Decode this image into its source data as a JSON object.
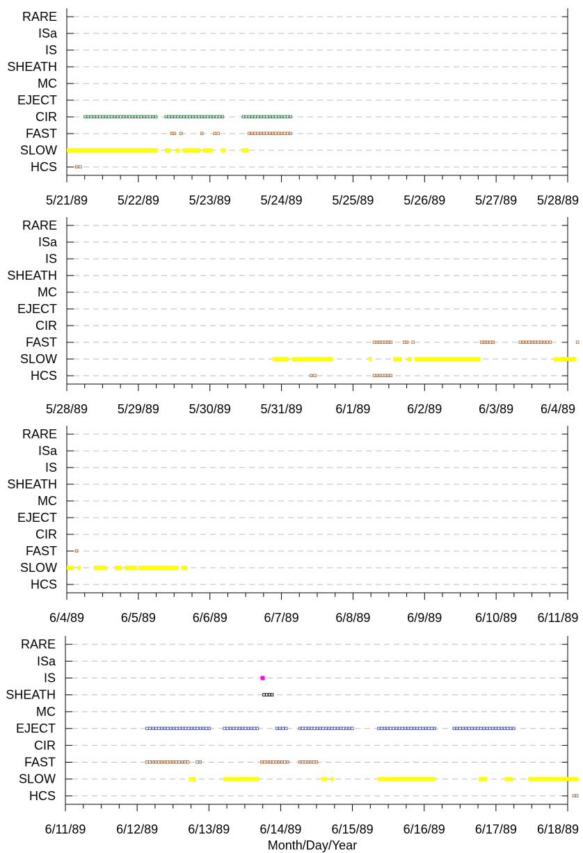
{
  "chart_data": [
    {
      "type": "timeline",
      "categories": [
        "RARE",
        "ISa",
        "IS",
        "SHEATH",
        "MC",
        "EJECT",
        "CIR",
        "FAST",
        "SLOW",
        "HCS"
      ],
      "x_ticks": [
        "5/21/89",
        "5/22/89",
        "5/23/89",
        "5/24/89",
        "5/25/89",
        "5/26/89",
        "5/27/89",
        "5/28/89"
      ],
      "grid": "dashed-horizontal",
      "series": [
        {
          "category": "CIR",
          "color": "#2a8a4a",
          "style": "open-square",
          "intervals": [
            [
              0.24,
              1.27
            ],
            [
              1.37,
              2.2
            ],
            [
              2.45,
              3.15
            ]
          ]
        },
        {
          "category": "FAST",
          "color": "#c06a2a",
          "style": "open-square",
          "intervals": [
            [
              1.45,
              1.52
            ],
            [
              1.58,
              1.6
            ],
            [
              1.87,
              1.89
            ],
            [
              2.05,
              2.15
            ],
            [
              2.53,
              3.15
            ]
          ]
        },
        {
          "category": "SLOW",
          "color": "#ffff00",
          "style": "thick-bar",
          "intervals": [
            [
              0.0,
              1.27
            ],
            [
              1.37,
              1.45
            ],
            [
              1.52,
              1.58
            ],
            [
              1.62,
              1.87
            ],
            [
              1.9,
              2.04
            ],
            [
              2.16,
              2.22
            ],
            [
              2.44,
              2.54
            ]
          ]
        },
        {
          "category": "HCS",
          "color": "#c06a2a",
          "style": "open-square",
          "intervals": [
            [
              0.12,
              0.22
            ]
          ]
        }
      ]
    },
    {
      "type": "timeline",
      "categories": [
        "RARE",
        "ISa",
        "IS",
        "SHEATH",
        "MC",
        "EJECT",
        "CIR",
        "FAST",
        "SLOW",
        "HCS"
      ],
      "x_ticks": [
        "5/28/89",
        "5/29/89",
        "5/30/89",
        "5/31/89",
        "6/1/89",
        "6/2/89",
        "6/3/89",
        "6/4/89"
      ],
      "grid": "dashed-horizontal",
      "series": [
        {
          "category": "FAST",
          "color": "#c06a2a",
          "style": "open-square",
          "intervals": [
            [
              4.28,
              4.55
            ],
            [
              4.7,
              4.77
            ],
            [
              4.82,
              4.84
            ],
            [
              5.78,
              5.98
            ],
            [
              6.32,
              6.78
            ],
            [
              7.12,
              7.15
            ]
          ]
        },
        {
          "category": "SLOW",
          "color": "#ffff00",
          "style": "thick-bar",
          "intervals": [
            [
              2.88,
              3.1
            ],
            [
              3.15,
              3.72
            ],
            [
              4.22,
              4.26
            ],
            [
              4.56,
              4.68
            ],
            [
              4.76,
              4.82
            ],
            [
              4.86,
              5.78
            ],
            [
              6.8,
              7.12
            ]
          ]
        },
        {
          "category": "HCS",
          "color": "#c06a2a",
          "style": "open-square",
          "intervals": [
            [
              3.4,
              3.5
            ],
            [
              4.28,
              4.55
            ]
          ]
        }
      ]
    },
    {
      "type": "timeline",
      "categories": [
        "RARE",
        "ISa",
        "IS",
        "SHEATH",
        "MC",
        "EJECT",
        "CIR",
        "FAST",
        "SLOW",
        "HCS"
      ],
      "x_ticks": [
        "6/4/89",
        "6/5/89",
        "6/6/89",
        "6/7/89",
        "6/8/89",
        "6/9/89",
        "6/10/89",
        "6/11/89"
      ],
      "grid": "dashed-horizontal",
      "series": [
        {
          "category": "FAST",
          "color": "#c06a2a",
          "style": "open-square",
          "intervals": [
            [
              0.12,
              0.14
            ]
          ]
        },
        {
          "category": "SLOW",
          "color": "#ffff00",
          "style": "thick-bar",
          "intervals": [
            [
              0.0,
              0.1
            ],
            [
              0.15,
              0.19
            ],
            [
              0.38,
              0.56
            ],
            [
              0.67,
              0.77
            ],
            [
              0.81,
              0.98
            ],
            [
              1.0,
              1.56
            ],
            [
              1.6,
              1.68
            ]
          ]
        }
      ]
    },
    {
      "type": "timeline",
      "categories": [
        "RARE",
        "ISa",
        "IS",
        "SHEATH",
        "MC",
        "EJECT",
        "CIR",
        "FAST",
        "SLOW",
        "HCS"
      ],
      "x_ticks": [
        "6/11/89",
        "6/12/89",
        "6/13/89",
        "6/14/89",
        "6/15/89",
        "6/16/89",
        "6/17/89",
        "6/18/89"
      ],
      "xlabel": "Month/Day/Year",
      "grid": "dashed-horizontal",
      "series": [
        {
          "category": "IS",
          "color": "#ff00ff",
          "style": "filled-square",
          "intervals": [
            [
              2.72,
              2.74
            ]
          ]
        },
        {
          "category": "SHEATH",
          "color": "#000000",
          "style": "open-square",
          "intervals": [
            [
              2.75,
              2.9
            ]
          ]
        },
        {
          "category": "EJECT",
          "color": "#4a5ab0",
          "style": "open-square",
          "intervals": [
            [
              1.12,
              2.03
            ],
            [
              2.2,
              2.7
            ],
            [
              2.93,
              3.1
            ],
            [
              3.25,
              4.02
            ],
            [
              4.35,
              5.17
            ],
            [
              5.4,
              6.27
            ]
          ]
        },
        {
          "category": "FAST",
          "color": "#c06a2a",
          "style": "open-square",
          "intervals": [
            [
              1.12,
              1.73
            ],
            [
              1.82,
              1.9
            ],
            [
              2.72,
              3.12
            ],
            [
              3.25,
              3.52
            ]
          ]
        },
        {
          "category": "SLOW",
          "color": "#ffff00",
          "style": "thick-bar",
          "intervals": [
            [
              1.72,
              1.82
            ],
            [
              2.2,
              2.7
            ],
            [
              3.57,
              3.65
            ],
            [
              3.7,
              3.74
            ],
            [
              4.35,
              5.15
            ],
            [
              5.76,
              5.88
            ],
            [
              6.12,
              6.24
            ],
            [
              6.45,
              7.15
            ]
          ]
        },
        {
          "category": "HCS",
          "color": "#c06a2a",
          "style": "open-square",
          "intervals": [
            [
              7.07,
              7.15
            ]
          ]
        }
      ]
    }
  ]
}
